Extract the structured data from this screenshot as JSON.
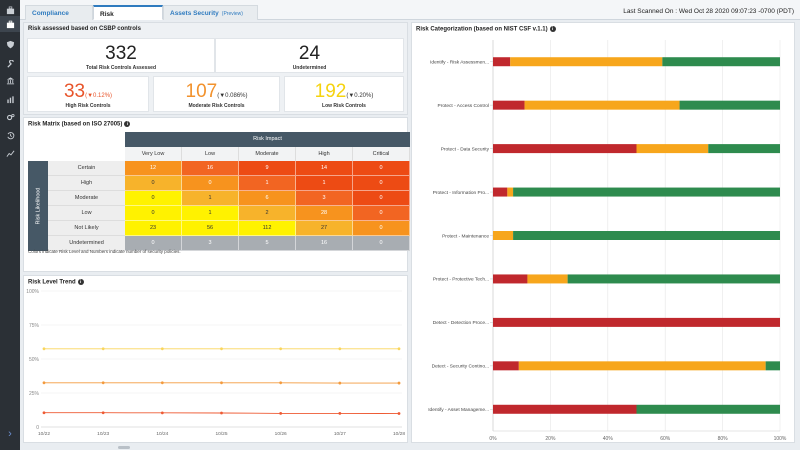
{
  "nav": {
    "items": [
      "briefcase-icon",
      "shield-icon",
      "wrench-icon",
      "bank-icon",
      "bar-chart-icon",
      "gears-icon",
      "history-icon",
      "line-chart-icon"
    ],
    "expand_glyph": "›"
  },
  "tabs": {
    "compliance": "Compliance",
    "risk": "Risk",
    "assets": "Assets Security",
    "assets_preview": "(Preview)"
  },
  "last_scanned": "Last Scanned On : Wed Oct 28 2020 09:07:23 -0700 (PDT)",
  "csbp": {
    "title": "Risk assessed based on CSBP controls",
    "total_value": "332",
    "total_label": "Total Risk Controls Assessed",
    "undetermined_value": "24",
    "undetermined_label": "Undetermined",
    "high_value": "33",
    "high_delta": "(▼0.12%)",
    "high_label": "High Risk Controls",
    "moderate_value": "107",
    "moderate_delta": "(▼0.086%)",
    "moderate_label": "Moderate Risk Controls",
    "low_value": "192",
    "low_delta": "(▼0.20%)",
    "low_label": "Low Risk Controls",
    "colors": {
      "high": "#e8542a",
      "moderate": "#f2922d",
      "low": "#f5d30f"
    }
  },
  "matrix": {
    "title": "Risk Matrix (based on ISO 27005)",
    "impact_label": "Risk Impact",
    "likelihood_label": "Risk Likelihood",
    "columns": [
      "Very Low",
      "Low",
      "Moderate",
      "High",
      "Critical"
    ],
    "rows": [
      {
        "label": "Certain",
        "values": [
          "12",
          "16",
          "9",
          "14",
          "0"
        ],
        "colors": [
          "#f7931e",
          "#f26522",
          "#ed4b14",
          "#ed4b14",
          "#ed4b14"
        ]
      },
      {
        "label": "High",
        "values": [
          "0",
          "0",
          "1",
          "1",
          "0"
        ],
        "colors": [
          "#f7b32b",
          "#f7931e",
          "#f26522",
          "#ed4b14",
          "#ed4b14"
        ]
      },
      {
        "label": "Moderate",
        "values": [
          "0",
          "1",
          "6",
          "3",
          "0"
        ],
        "colors": [
          "#fff200",
          "#f7b32b",
          "#f7931e",
          "#f26522",
          "#ed4b14"
        ]
      },
      {
        "label": "Low",
        "values": [
          "0",
          "1",
          "2",
          "28",
          "0"
        ],
        "colors": [
          "#fff200",
          "#fff200",
          "#f7b32b",
          "#f7931e",
          "#f26522"
        ]
      },
      {
        "label": "Not Likely",
        "values": [
          "23",
          "56",
          "112",
          "27",
          "0"
        ],
        "colors": [
          "#fff200",
          "#fff200",
          "#fff200",
          "#f7b32b",
          "#f7931e"
        ]
      },
      {
        "label": "Undetermined",
        "values": [
          "0",
          "3",
          "5",
          "16",
          "0"
        ],
        "colors": [
          "#a8adb2",
          "#a8adb2",
          "#a8adb2",
          "#a8adb2",
          "#a8adb2"
        ]
      }
    ],
    "note": "Colors indicate Risk Level and Numbers indicate number of security policies."
  },
  "trend": {
    "title": "Risk Level Trend",
    "chart_data": {
      "type": "line",
      "x": [
        "10/22",
        "10/23",
        "10/24",
        "10/25",
        "10/26",
        "10/27",
        "10/28"
      ],
      "ylim": [
        0,
        100
      ],
      "yticks": [
        "0",
        "25%",
        "50%",
        "75%",
        "100%"
      ],
      "series": [
        {
          "values": [
            57.5,
            57.5,
            57.5,
            57.5,
            57.5,
            57.5,
            57.5
          ],
          "color": "#f9d55b"
        },
        {
          "values": [
            32.5,
            32.5,
            32.5,
            32.5,
            32.5,
            32.3,
            32.3
          ],
          "color": "#f39a3d"
        },
        {
          "values": [
            10.5,
            10.5,
            10.4,
            10.3,
            10.0,
            10.0,
            9.9
          ],
          "color": "#ee5a33"
        }
      ]
    }
  },
  "categorization": {
    "title": "Risk Categorization (based on NIST CSF v.1.1)",
    "chart_data": {
      "type": "bar",
      "orientation": "horizontal",
      "stacked": true,
      "categories": [
        "Identify - Risk Assessmen...",
        "Protect - Access Control",
        "Protect - Data Security",
        "Protect - Information Pro...",
        "Protect - Maintenance",
        "Protect - Protective Tech...",
        "Detect - Detection Proce...",
        "Detect - Security Contino...",
        "Identify - Asset Manageme..."
      ],
      "xticks": [
        "0%",
        "20%",
        "40%",
        "60%",
        "80%",
        "100%"
      ],
      "xlim": [
        0,
        100
      ],
      "series": [
        {
          "values": [
            6,
            11,
            50,
            5,
            0,
            12,
            100,
            9,
            50
          ],
          "color": "#c0282d"
        },
        {
          "values": [
            53,
            54,
            25,
            2,
            7,
            14,
            0,
            86,
            0
          ],
          "color": "#f7a61c"
        },
        {
          "values": [
            41,
            35,
            25,
            93,
            93,
            74,
            0,
            5,
            50
          ],
          "color": "#2e8b4e"
        }
      ]
    }
  }
}
